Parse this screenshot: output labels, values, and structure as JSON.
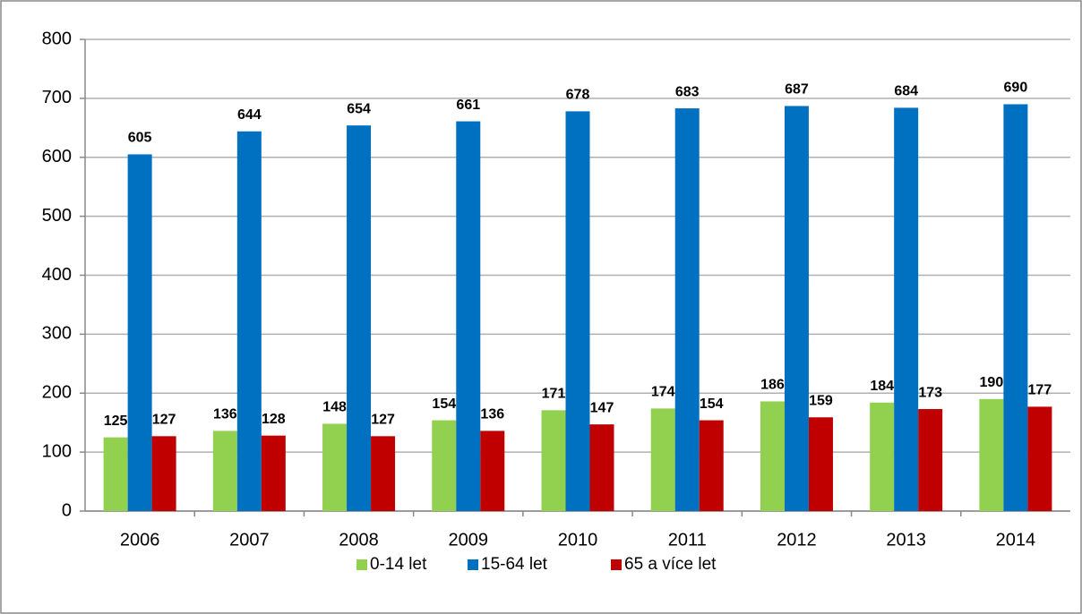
{
  "chart_data": {
    "type": "bar",
    "categories": [
      "2006",
      "2007",
      "2008",
      "2009",
      "2010",
      "2011",
      "2012",
      "2013",
      "2014"
    ],
    "series": [
      {
        "name": "0-14 let",
        "color": "#92d050",
        "values": [
          125,
          136,
          148,
          154,
          171,
          174,
          186,
          184,
          190
        ]
      },
      {
        "name": "15-64 let",
        "color": "#0070c0",
        "values": [
          605,
          644,
          654,
          661,
          678,
          683,
          687,
          684,
          690
        ]
      },
      {
        "name": "65 a více let",
        "color": "#c00000",
        "values": [
          127,
          128,
          127,
          136,
          147,
          154,
          159,
          173,
          177
        ]
      }
    ],
    "ylim": [
      0,
      800
    ],
    "yticks": [
      0,
      100,
      200,
      300,
      400,
      500,
      600,
      700,
      800
    ],
    "grid": true,
    "legend": "bottom"
  }
}
